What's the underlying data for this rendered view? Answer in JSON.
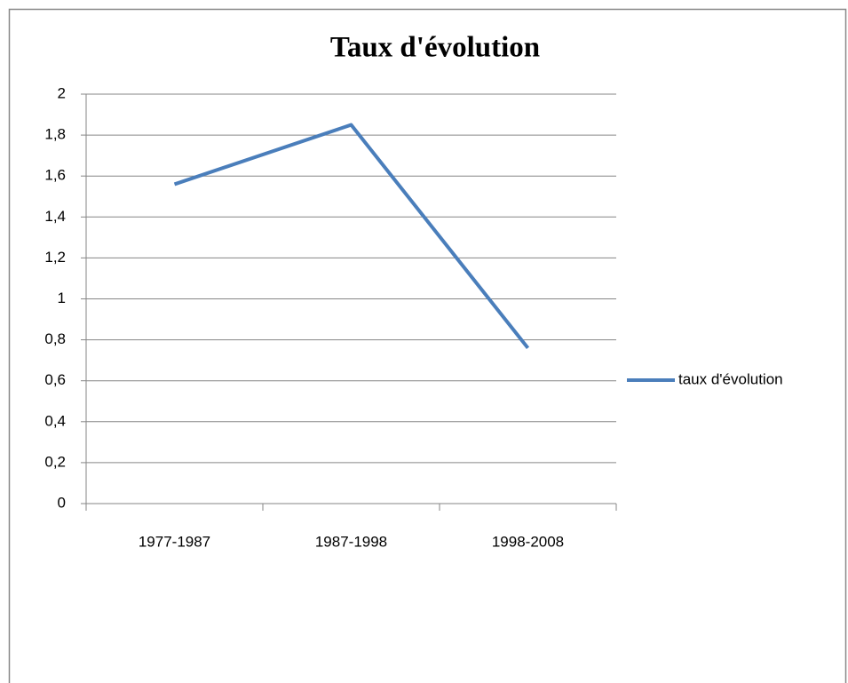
{
  "chart_data": {
    "type": "line",
    "title": "Taux d'évolution",
    "categories": [
      "1977-1987",
      "1987-1998",
      "1998-2008"
    ],
    "series": [
      {
        "name": "taux d'évolution",
        "color": "#4a7ebb",
        "values": [
          1.56,
          1.85,
          0.76
        ]
      }
    ],
    "ylim": [
      0,
      2
    ],
    "yticks": [
      0,
      {
        "value": 0.2,
        "label": "0,2"
      },
      {
        "value": 0.4,
        "label": "0,4"
      },
      {
        "value": 0.6,
        "label": "0,6"
      },
      {
        "value": 0.8,
        "label": "0,8"
      },
      1,
      {
        "value": 1.2,
        "label": "1,2"
      },
      {
        "value": 1.4,
        "label": "1,4"
      },
      {
        "value": 1.6,
        "label": "1,6"
      },
      {
        "value": 1.8,
        "label": "1,8"
      },
      2
    ],
    "grid": true,
    "legend": "right"
  }
}
